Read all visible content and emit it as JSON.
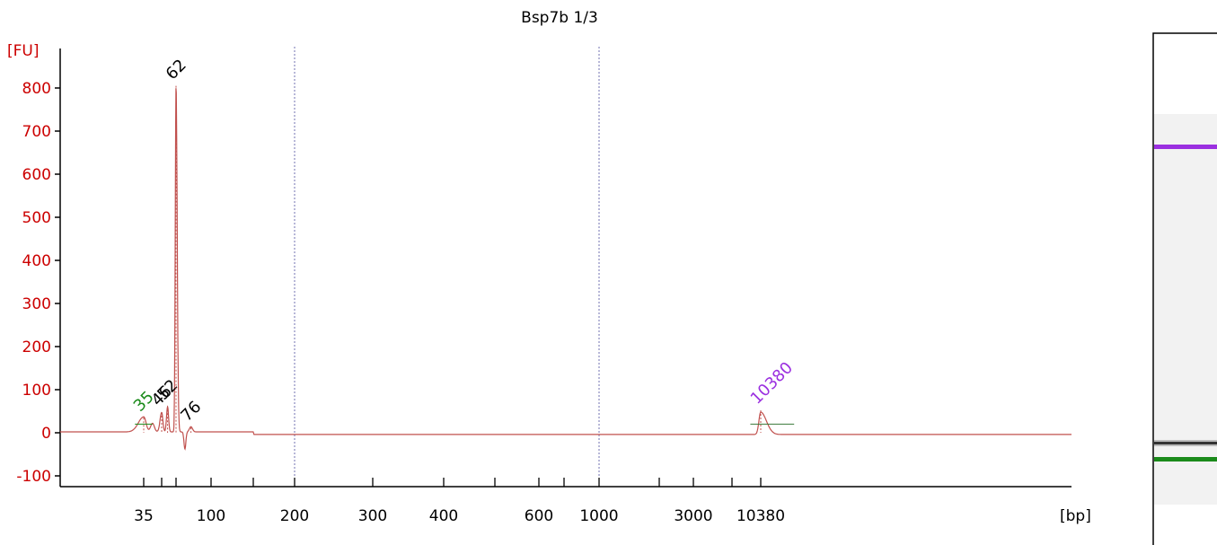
{
  "chart_data": {
    "type": "line",
    "title": "Bsp7b 1/3",
    "ylabel": "[FU]",
    "xlabel": "[bp]",
    "ylim": [
      -120,
      900
    ],
    "y_ticks": [
      -100,
      0,
      100,
      200,
      300,
      400,
      500,
      600,
      700,
      800
    ],
    "x_tick_labels": [
      "35",
      "100",
      "200",
      "300",
      "400",
      "600",
      "1000",
      "3000",
      "10380"
    ],
    "vertical_gridlines_at": [
      "200",
      "1000"
    ],
    "colors": {
      "axis": "#cc0000",
      "trace": "#c0504d",
      "lower_marker": "#1a8a1a",
      "upper_marker": "#9b30e0",
      "peak_label": "#000000",
      "grid": "#7070b0"
    },
    "peaks": [
      {
        "label": "35",
        "bp": 35,
        "fu": 35,
        "color_key": "lower_marker"
      },
      {
        "label": "46",
        "bp": 46,
        "fu": 48,
        "color_key": "peak_label"
      },
      {
        "label": "52",
        "bp": 52,
        "fu": 62,
        "color_key": "peak_label"
      },
      {
        "label": "62",
        "bp": 62,
        "fu": 805,
        "color_key": "peak_label"
      },
      {
        "label": "76",
        "bp": 76,
        "fu": 12,
        "color_key": "peak_label"
      },
      {
        "label": "10380",
        "bp": 10380,
        "fu": 52,
        "color_key": "upper_marker"
      }
    ],
    "gel_lane": {
      "bands": [
        {
          "name": "upper-marker-band",
          "color_key": "upper_marker"
        },
        {
          "name": "sample-band",
          "color": "#333333"
        },
        {
          "name": "lower-marker-band",
          "color_key": "lower_marker"
        }
      ]
    }
  }
}
